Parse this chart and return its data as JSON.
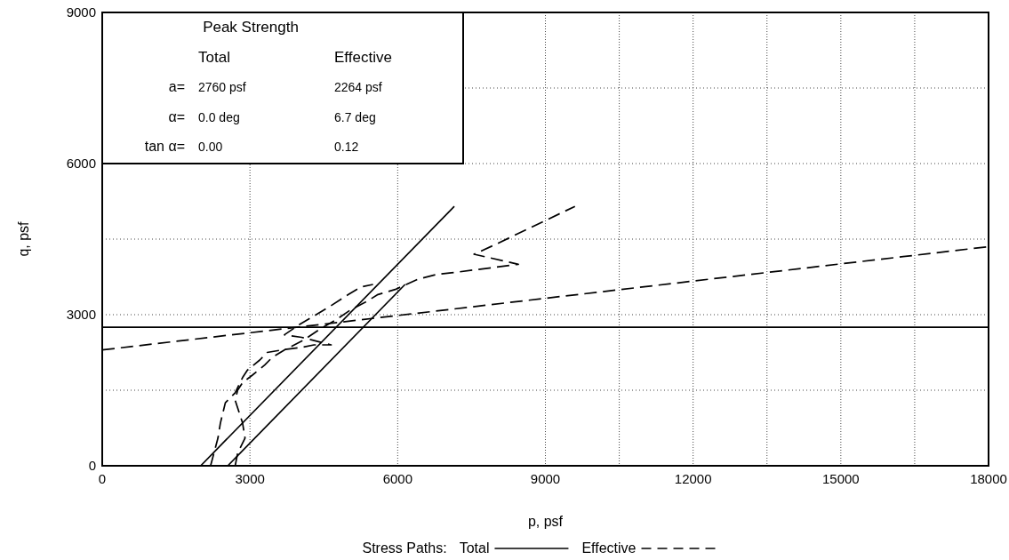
{
  "chart_data": {
    "type": "line",
    "xlabel": "p, psf",
    "ylabel": "q, psf",
    "legend_title": "Stress Paths:",
    "legend": "bottom",
    "annotations": [
      "Peak Strength",
      "Total",
      "Effective",
      "a=",
      "2760 psf",
      "2264 psf",
      "α=",
      "0.0 deg",
      "6.7 deg",
      "tan α=",
      "0.00",
      "0.12"
    ],
    "xlim": [
      0,
      18000
    ],
    "ylim": [
      0,
      9000
    ],
    "xticks": [
      0,
      3000,
      6000,
      9000,
      {
        "value": 10500,
        "label": null
      },
      12000,
      {
        "value": 13500,
        "label": null
      },
      15000,
      {
        "value": 16500,
        "label": null
      },
      18000
    ],
    "yticks": [
      0,
      {
        "value": 1500,
        "label": null
      },
      3000,
      {
        "value": 4500,
        "label": null
      },
      6000,
      {
        "value": 7500,
        "label": null
      },
      9000
    ],
    "grid": true,
    "series": [
      {
        "name": "Total",
        "color": "#000000",
        "line_style": "solid",
        "x": [
          2000,
          7150
        ],
        "values": [
          0,
          5150
        ]
      },
      {
        "color": "#000000",
        "line_style": "solid",
        "x": [
          2550,
          6150
        ],
        "values": [
          0,
          3600
        ]
      },
      {
        "color": "#000000",
        "line_style": "solid",
        "x": [
          0,
          18000
        ],
        "values": [
          2750,
          2750
        ]
      },
      {
        "name": "Effective",
        "color": "#000000",
        "line_style": "dashed",
        "x": [
          2200,
          2350,
          2400,
          2500,
          2600,
          2700,
          2850,
          2950,
          3200,
          3350,
          3650,
          4050,
          4300,
          4650,
          4050,
          3700,
          4000,
          4600,
          5000,
          5250,
          5500
        ],
        "values": [
          0,
          550,
          850,
          1250,
          1350,
          1450,
          1750,
          1900,
          2100,
          2250,
          2300,
          2350,
          2400,
          2400,
          2550,
          2600,
          2800,
          3150,
          3400,
          3550,
          3600
        ]
      },
      {
        "color": "#000000",
        "line_style": "dashed",
        "x": [
          2700,
          2750,
          2900,
          2850,
          2800,
          2700,
          2750,
          2850,
          3050,
          3300,
          3450,
          3700,
          4100,
          4400,
          4750,
          5050,
          5350,
          5600,
          5950,
          6400,
          6800,
          7250,
          8450,
          7550,
          8000,
          9600
        ],
        "values": [
          0,
          250,
          550,
          850,
          1000,
          1300,
          1500,
          1650,
          1800,
          2000,
          2150,
          2300,
          2500,
          2700,
          2900,
          3100,
          3250,
          3400,
          3500,
          3700,
          3800,
          3850,
          4000,
          4200,
          4400,
          5150
        ]
      },
      {
        "color": "#000000",
        "line_style": "dashed",
        "x": [
          0,
          18000
        ],
        "values": [
          2300,
          4350
        ]
      }
    ]
  }
}
